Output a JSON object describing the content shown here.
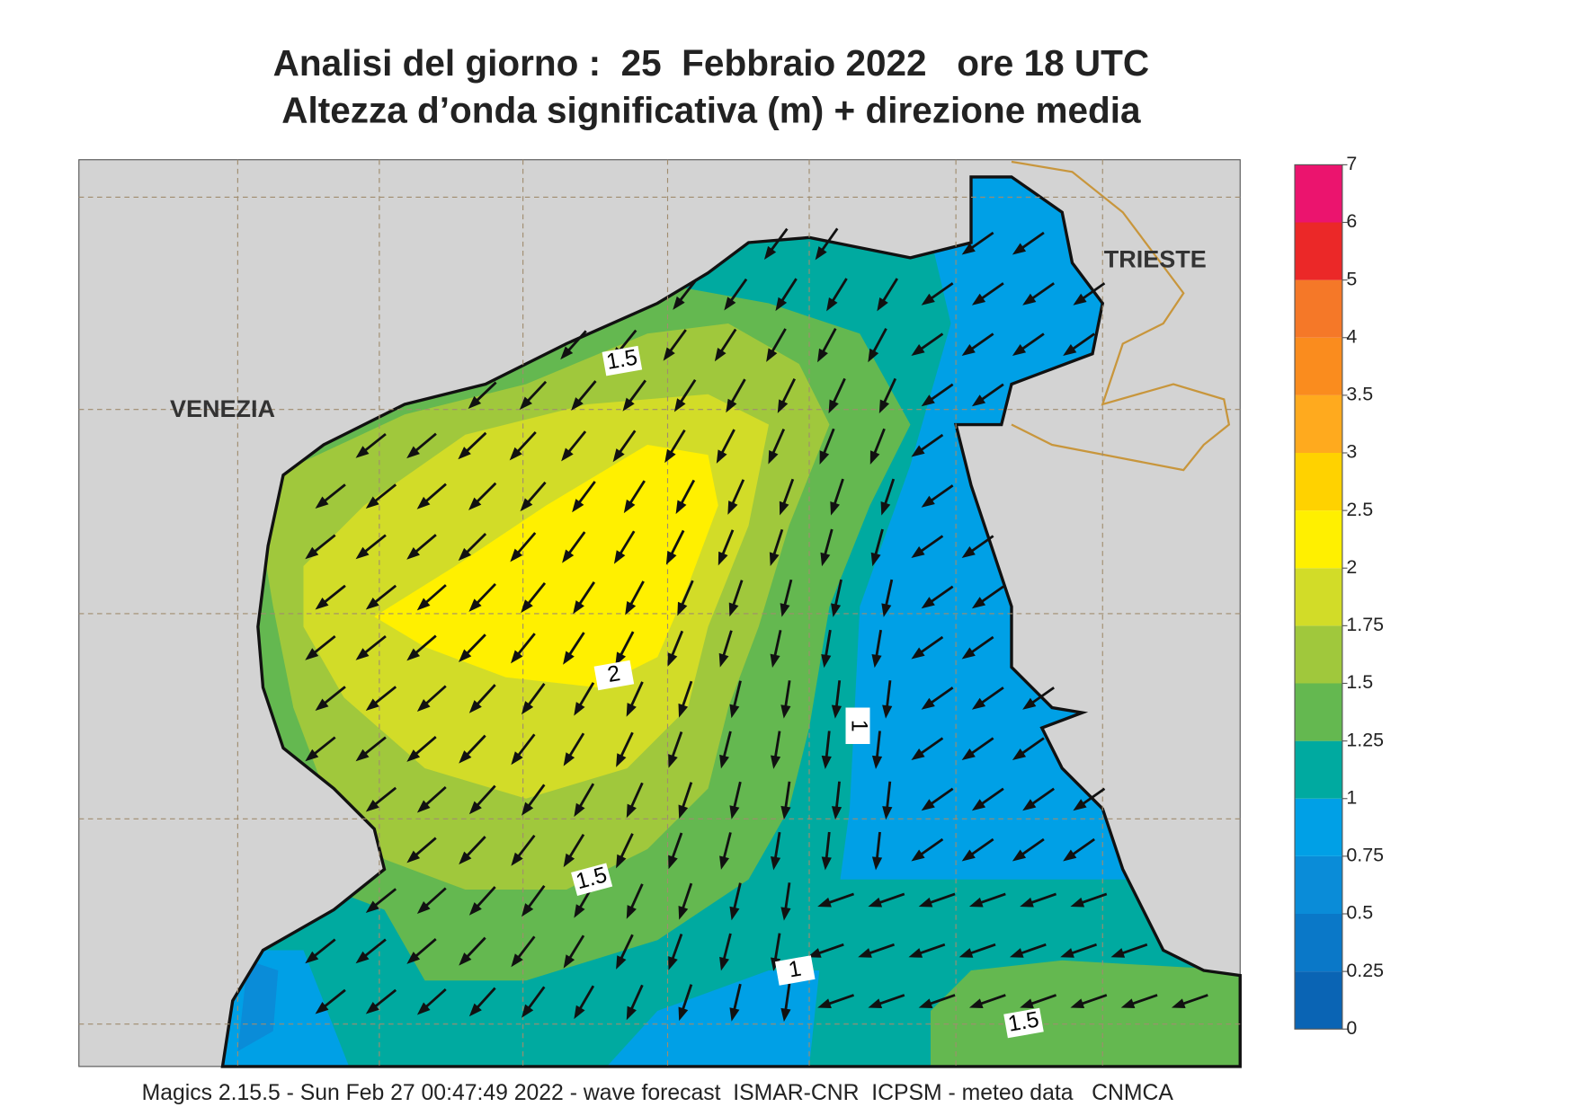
{
  "header": {
    "title": "Analisi del giorno :  25  Febbraio 2022   ore 18 UTC",
    "subtitle": "Altezza d’onda significativa (m) + direzione media"
  },
  "map": {
    "places": [
      "VENEZIA",
      "TRIESTE"
    ],
    "contour_labels": [
      "1.5",
      "2",
      "1",
      "1.5",
      "1",
      "1.5"
    ]
  },
  "colorbar": {
    "ticks": [
      0,
      0.25,
      0.5,
      0.75,
      1,
      1.25,
      1.5,
      1.75,
      2,
      2.5,
      3,
      3.5,
      4,
      5,
      6,
      7
    ],
    "colors": [
      "#0a64b4",
      "#0a78c8",
      "#0a8cd8",
      "#00a0e6",
      "#00aaa0",
      "#64b850",
      "#a0c83c",
      "#d2dc28",
      "#fff000",
      "#ffd200",
      "#ffaa1e",
      "#fa8c1e",
      "#f57828",
      "#eb2828",
      "#eb146e"
    ]
  },
  "footer": "Magics 2.15.5 - Sun Feb 27 00:47:49 2022 - wave forecast  ISMAR-CNR  ICPSM - meteo data   CNMCA"
}
